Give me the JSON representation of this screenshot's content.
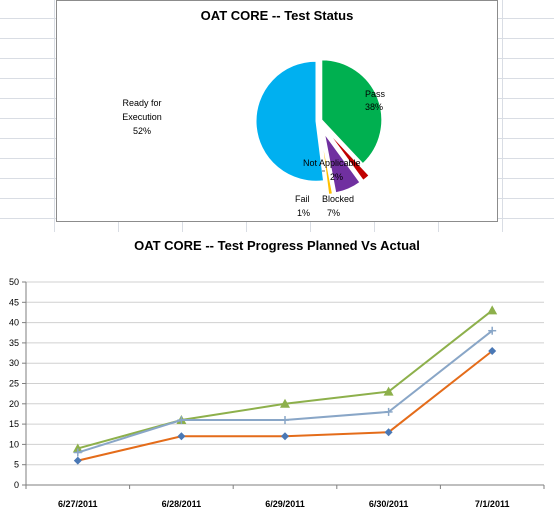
{
  "chart_data": [
    {
      "type": "pie",
      "title": "OAT CORE -- Test Status",
      "slices": [
        {
          "name": "Pass",
          "value": 38,
          "label": "38%",
          "color": "#00b050"
        },
        {
          "name": "Not Applicable",
          "value": 2,
          "label": "2%",
          "color": "#c00000"
        },
        {
          "name": "Blocked",
          "value": 7,
          "label": "7%",
          "color": "#7030a0"
        },
        {
          "name": "Fail",
          "value": 1,
          "label": "1%",
          "color": "#ffc000"
        },
        {
          "name": "Ready for Execution",
          "value": 52,
          "label": "52%",
          "color": "#00b0f0"
        }
      ],
      "slice_text": {
        "pass": "Pass",
        "not_applicable": "Not Applicable",
        "blocked": "Blocked",
        "fail": "Fail",
        "ready_line1": "Ready for",
        "ready_line2": "Execution"
      }
    },
    {
      "type": "line",
      "title": "OAT CORE -- Test Progress Planned Vs Actual",
      "categories": [
        "6/27/2011",
        "6/28/2011",
        "6/29/2011",
        "6/30/2011",
        "7/1/2011"
      ],
      "ylim": [
        0,
        50
      ],
      "yticks": [
        "0",
        "5",
        "10",
        "15",
        "20",
        "25",
        "30",
        "35",
        "40",
        "45",
        "50"
      ],
      "grid": true,
      "legend": "none",
      "series": [
        {
          "values": [
            9,
            16,
            20,
            23,
            43
          ],
          "color": "#8db04b",
          "marker": "triangle"
        },
        {
          "values": [
            8,
            16,
            16,
            18,
            38
          ],
          "color": "#89a6c7",
          "marker": "cross"
        },
        {
          "values": [
            6,
            12,
            12,
            13,
            33
          ],
          "color": "#e46c1a",
          "marker": "diamond",
          "marker_color": "#4a78b5"
        }
      ]
    }
  ]
}
